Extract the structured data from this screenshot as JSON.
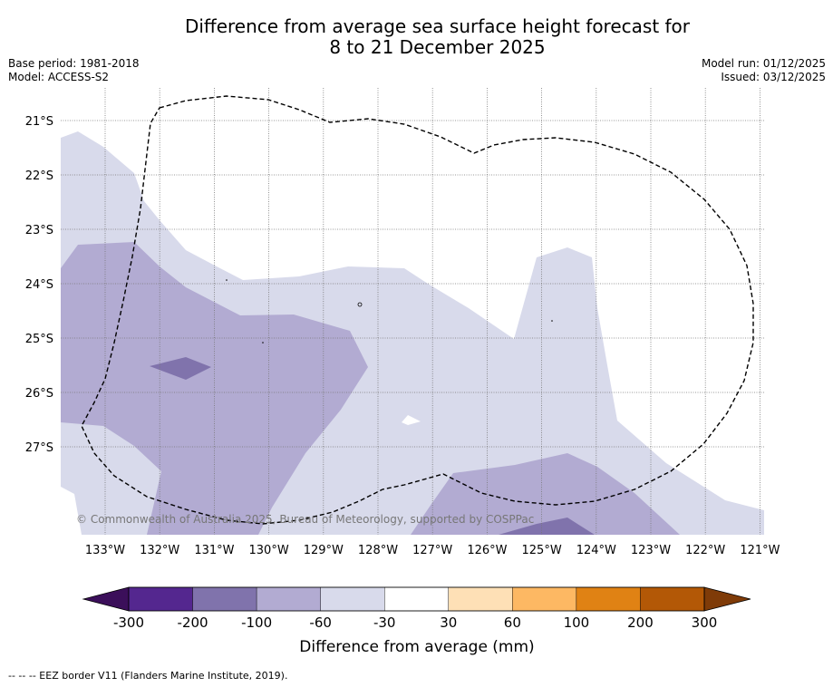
{
  "title": {
    "line1": "Difference from average sea surface height forecast for",
    "line2": "8 to 21 December 2025"
  },
  "meta_left": {
    "base_period": "Base period: 1981-2018",
    "model": "Model: ACCESS-S2"
  },
  "meta_right": {
    "model_run": "Model run: 01/12/2025",
    "issued": "Issued: 03/12/2025"
  },
  "map": {
    "latitude_labels": [
      "21°S",
      "22°S",
      "23°S",
      "24°S",
      "25°S",
      "26°S",
      "27°S"
    ],
    "longitude_labels": [
      "133°W",
      "132°W",
      "131°W",
      "130°W",
      "129°W",
      "128°W",
      "127°W",
      "126°W",
      "125°W",
      "124°W",
      "123°W",
      "122°W",
      "121°W"
    ],
    "copyright": "© Commonwealth of Australia 2025, Bureau of Meteorology, supported by COSPPac",
    "eez_style": "dashed"
  },
  "colorbar": {
    "label": "Difference from average (mm)",
    "tick_labels": [
      "-300",
      "-200",
      "-100",
      "-60",
      "-30",
      "30",
      "60",
      "100",
      "200",
      "300"
    ],
    "under_color": "#3b0f5a",
    "over_color": "#7f3b08",
    "colors": [
      "#54278f",
      "#8073ac",
      "#b2abd2",
      "#d8daeb",
      "#ffffff",
      "#fee0b6",
      "#fdb863",
      "#e08214",
      "#b35806"
    ]
  },
  "shading_levels": {
    "light": "#d8daeb",
    "medium": "#b2abd2",
    "dark": "#8073ac"
  },
  "footer": "--  --  -- EEZ border V11 (Flanders Marine Institute, 2019)."
}
